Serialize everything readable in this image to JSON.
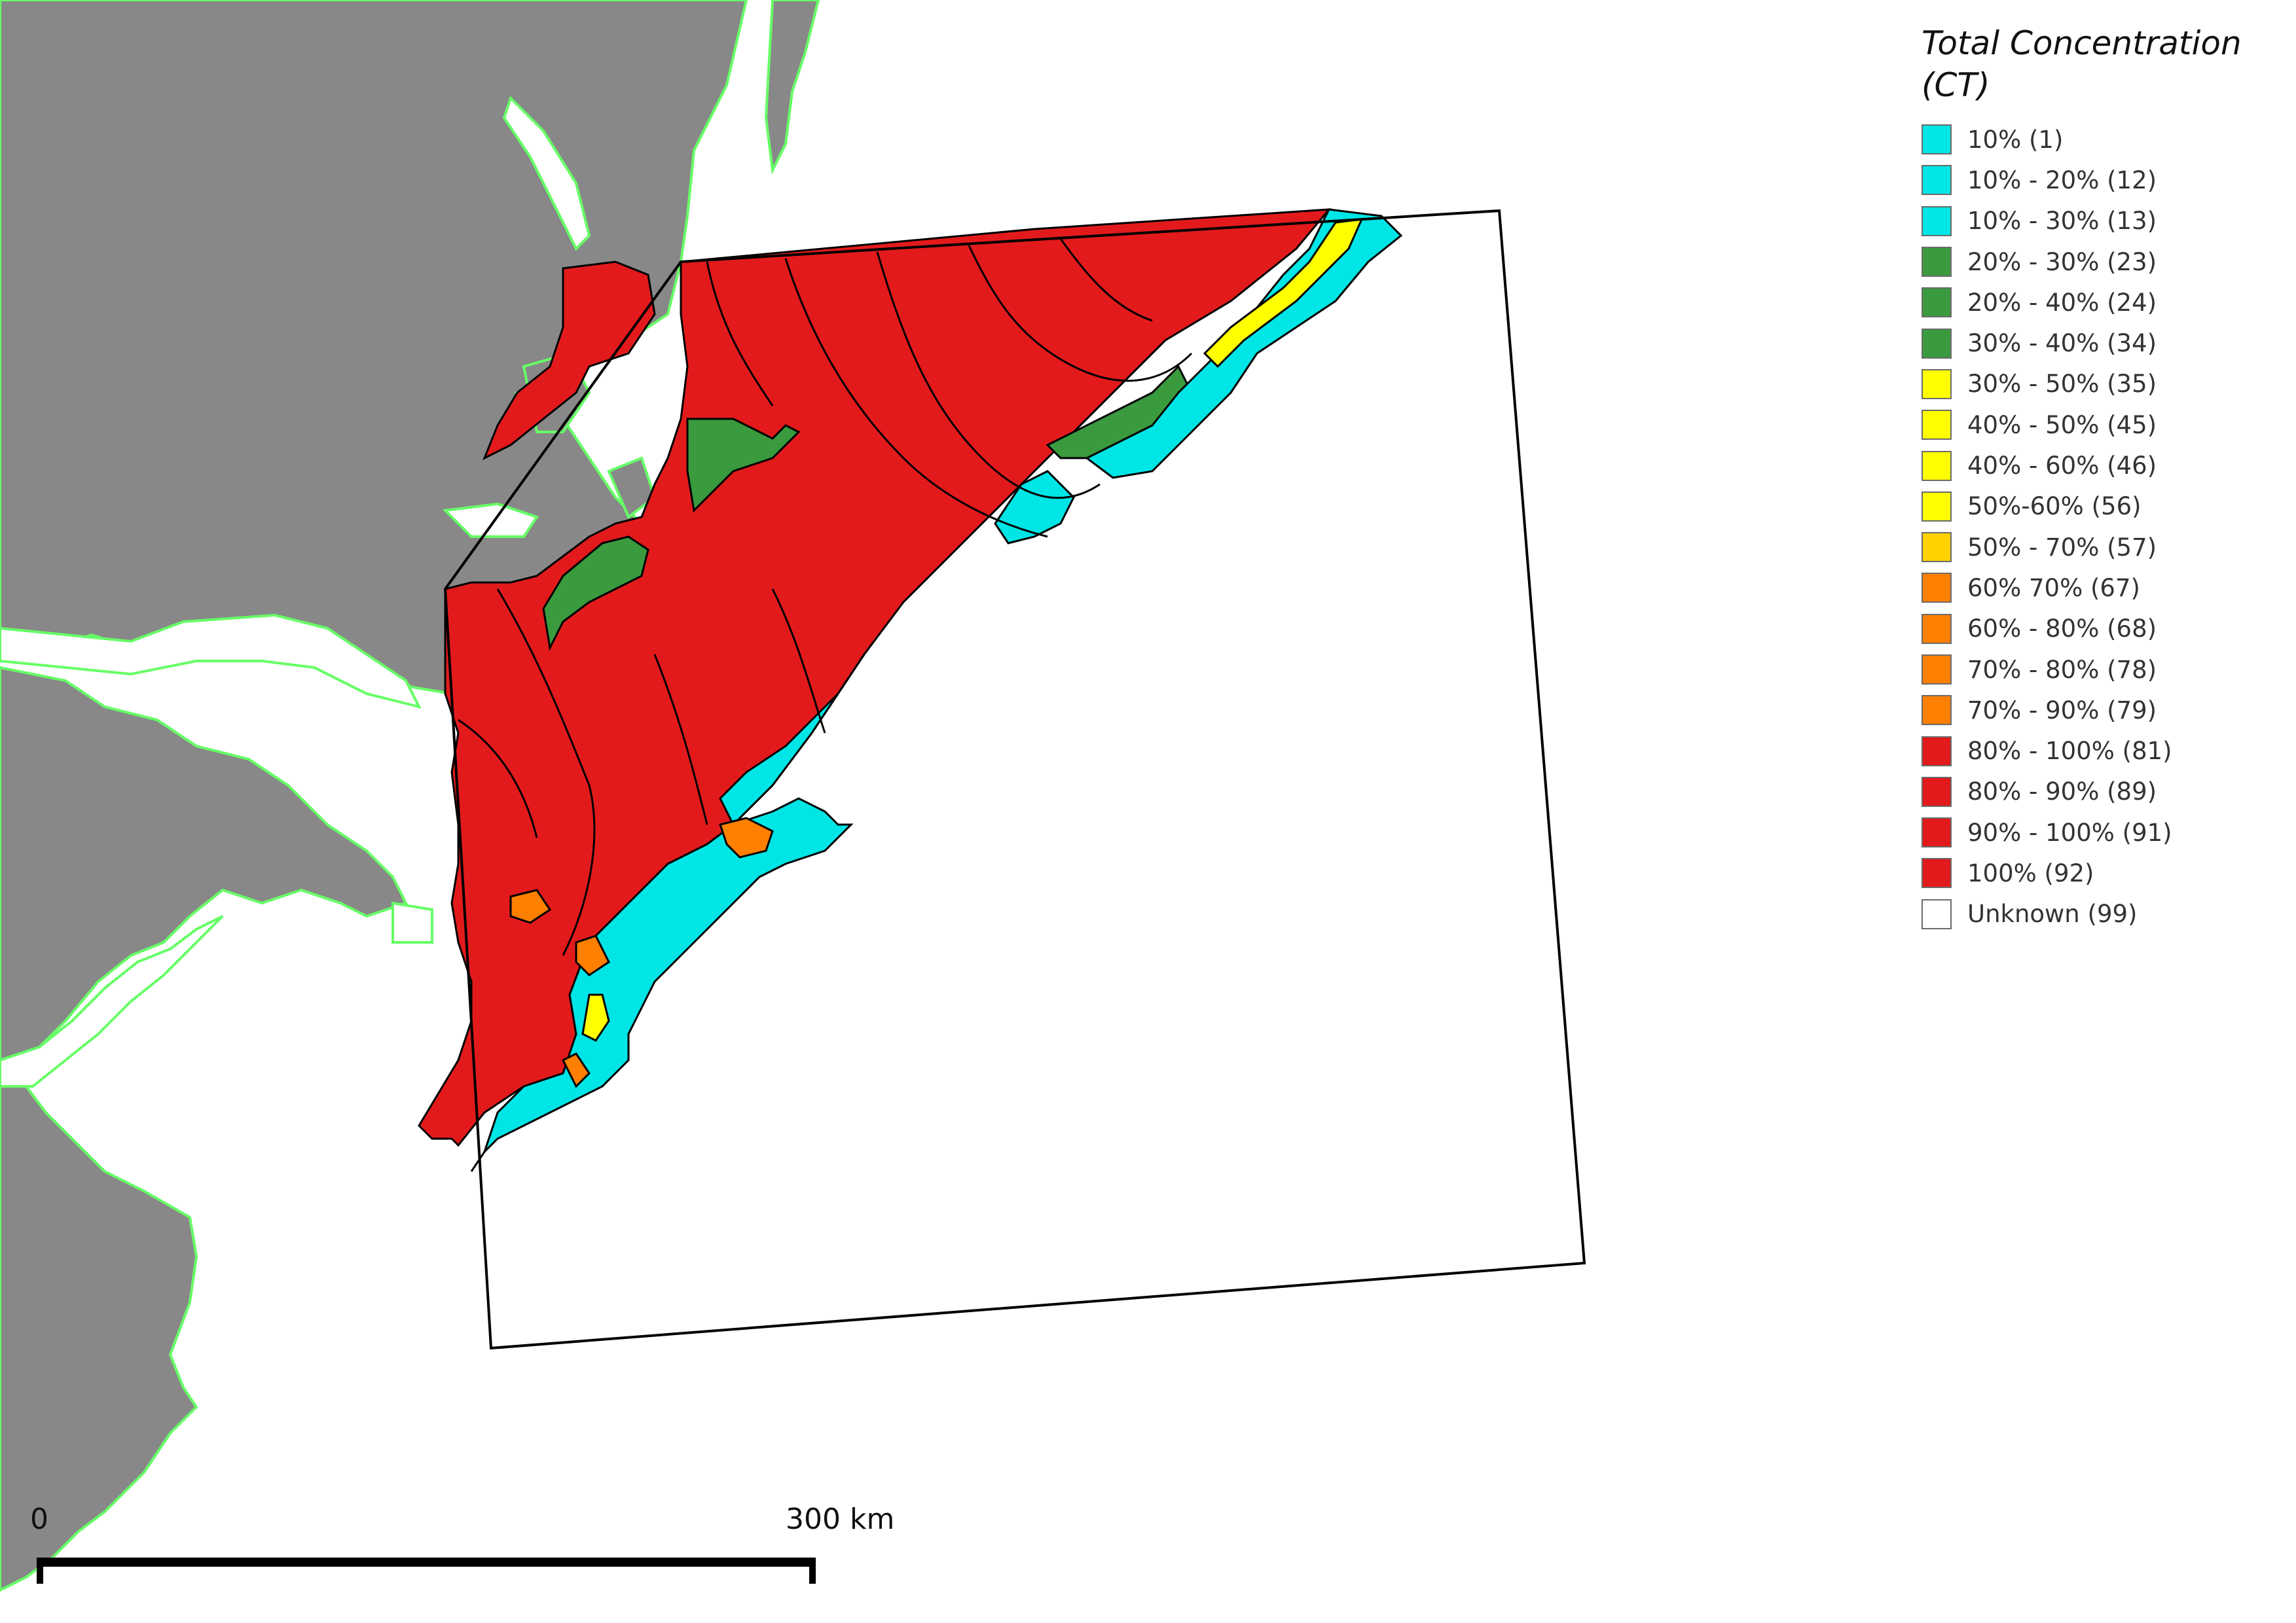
{
  "legend": {
    "title": "Total Concentration (CT)",
    "items": [
      {
        "label": "10% (1)",
        "color": "#00E5E5"
      },
      {
        "label": "10% - 20% (12)",
        "color": "#00E5E5"
      },
      {
        "label": "10% - 30% (13)",
        "color": "#00E5E5"
      },
      {
        "label": "20% - 30% (23)",
        "color": "#3A9A3E"
      },
      {
        "label": "20% - 40% (24)",
        "color": "#3A9A3E"
      },
      {
        "label": "30% - 40% (34)",
        "color": "#3A9A3E"
      },
      {
        "label": "30% - 50% (35)",
        "color": "#FFFF00"
      },
      {
        "label": "40% - 50% (45)",
        "color": "#FFFF00"
      },
      {
        "label": "40% - 60% (46)",
        "color": "#FFFF00"
      },
      {
        "label": "50%-60% (56)",
        "color": "#FFFF00"
      },
      {
        "label": "50% - 70% (57)",
        "color": "#FFD200"
      },
      {
        "label": "60% 70% (67)",
        "color": "#FF7F00"
      },
      {
        "label": "60% - 80% (68)",
        "color": "#FF7F00"
      },
      {
        "label": "70% - 80% (78)",
        "color": "#FF7F00"
      },
      {
        "label": "70% - 90% (79)",
        "color": "#FF7F00"
      },
      {
        "label": "80% - 100% (81)",
        "color": "#E31A1C"
      },
      {
        "label": "80% - 90% (89)",
        "color": "#E31A1C"
      },
      {
        "label": "90% - 100% (91)",
        "color": "#E31A1C"
      },
      {
        "label": "100% (92)",
        "color": "#E31A1C"
      },
      {
        "label": "Unknown (99)",
        "color": "#FFFFFF"
      }
    ]
  },
  "scale_bar": {
    "start_label": "0",
    "end_label": "300 km"
  },
  "colors": {
    "land": "#888888",
    "coastline": "#66FF66",
    "background": "#FFFFFF"
  }
}
